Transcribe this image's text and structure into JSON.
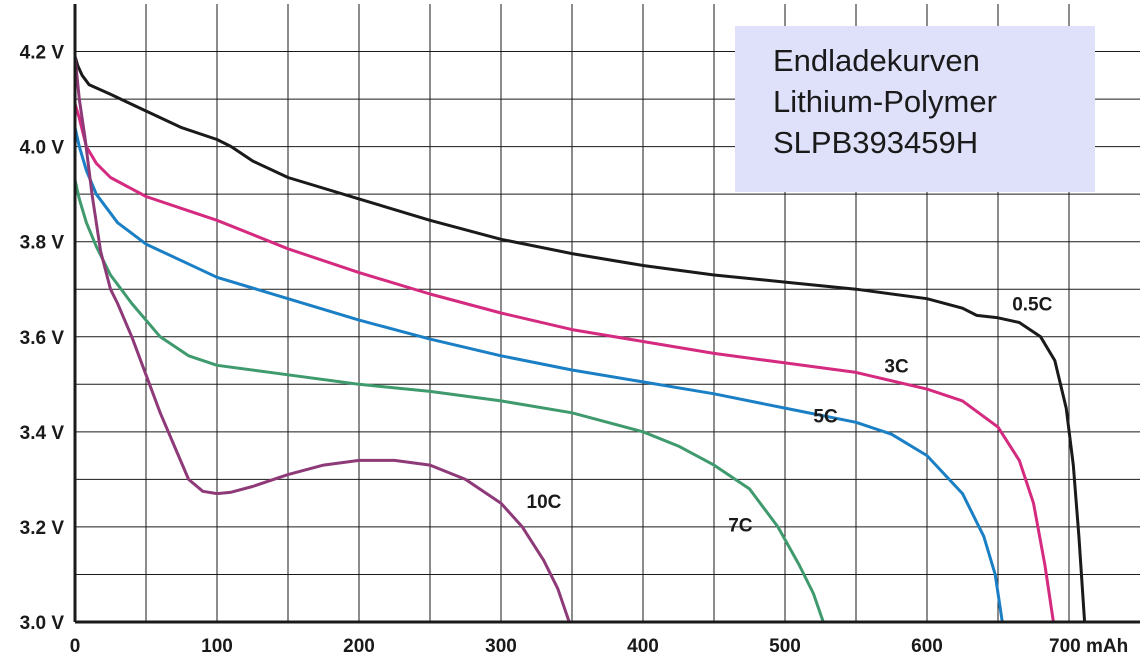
{
  "chart_data": {
    "type": "line",
    "title": [
      "Endladekurven",
      "Lithium-Polymer",
      "SLPB393459H"
    ],
    "xlabel": "",
    "ylabel": "",
    "x_unit_label": "700 mAh",
    "xlim": [
      0,
      750
    ],
    "ylim": [
      3.0,
      4.3
    ],
    "grid": true,
    "x_ticks": [
      0,
      100,
      200,
      300,
      400,
      500,
      600,
      700
    ],
    "x_tick_labels": [
      "0",
      "100",
      "200",
      "300",
      "400",
      "500",
      "600",
      "700 mAh"
    ],
    "y_ticks": [
      3.0,
      3.2,
      3.4,
      3.6,
      3.8,
      4.0,
      4.2
    ],
    "y_tick_labels": [
      "3.0 V",
      "3.2 V",
      "3.4 V",
      "3.6 V",
      "3.8 V",
      "4.0 V",
      "4.2 V"
    ],
    "series": [
      {
        "name": "0.5C",
        "color": "#1a1a1a",
        "label_at": [
          660,
          3.655
        ],
        "points": [
          [
            0,
            4.19
          ],
          [
            2,
            4.17
          ],
          [
            5,
            4.15
          ],
          [
            10,
            4.13
          ],
          [
            25,
            4.11
          ],
          [
            50,
            4.075
          ],
          [
            75,
            4.04
          ],
          [
            100,
            4.015
          ],
          [
            110,
            4.0
          ],
          [
            125,
            3.97
          ],
          [
            150,
            3.935
          ],
          [
            200,
            3.89
          ],
          [
            250,
            3.845
          ],
          [
            300,
            3.805
          ],
          [
            350,
            3.775
          ],
          [
            400,
            3.75
          ],
          [
            450,
            3.73
          ],
          [
            500,
            3.715
          ],
          [
            550,
            3.7
          ],
          [
            600,
            3.68
          ],
          [
            625,
            3.66
          ],
          [
            635,
            3.645
          ],
          [
            650,
            3.64
          ],
          [
            665,
            3.63
          ],
          [
            680,
            3.6
          ],
          [
            690,
            3.55
          ],
          [
            698,
            3.45
          ],
          [
            703,
            3.33
          ],
          [
            707,
            3.18
          ],
          [
            711,
            3.0
          ]
        ]
      },
      {
        "name": "3C",
        "color": "#d42a7f",
        "label_at": [
          570,
          3.525
        ],
        "points": [
          [
            0,
            4.09
          ],
          [
            3,
            4.06
          ],
          [
            8,
            4.0
          ],
          [
            15,
            3.965
          ],
          [
            25,
            3.935
          ],
          [
            50,
            3.895
          ],
          [
            75,
            3.87
          ],
          [
            100,
            3.845
          ],
          [
            150,
            3.785
          ],
          [
            200,
            3.735
          ],
          [
            250,
            3.69
          ],
          [
            300,
            3.65
          ],
          [
            350,
            3.615
          ],
          [
            400,
            3.59
          ],
          [
            450,
            3.565
          ],
          [
            500,
            3.545
          ],
          [
            550,
            3.525
          ],
          [
            600,
            3.49
          ],
          [
            625,
            3.465
          ],
          [
            650,
            3.41
          ],
          [
            665,
            3.34
          ],
          [
            675,
            3.25
          ],
          [
            683,
            3.12
          ],
          [
            689,
            3.0
          ]
        ]
      },
      {
        "name": "5C",
        "color": "#1a7fc4",
        "label_at": [
          520,
          3.42
        ],
        "points": [
          [
            0,
            4.04
          ],
          [
            3,
            4.0
          ],
          [
            8,
            3.95
          ],
          [
            15,
            3.9
          ],
          [
            30,
            3.84
          ],
          [
            50,
            3.795
          ],
          [
            75,
            3.76
          ],
          [
            100,
            3.725
          ],
          [
            150,
            3.68
          ],
          [
            200,
            3.635
          ],
          [
            250,
            3.595
          ],
          [
            300,
            3.56
          ],
          [
            350,
            3.53
          ],
          [
            400,
            3.505
          ],
          [
            450,
            3.48
          ],
          [
            500,
            3.45
          ],
          [
            550,
            3.42
          ],
          [
            575,
            3.395
          ],
          [
            600,
            3.35
          ],
          [
            625,
            3.27
          ],
          [
            640,
            3.18
          ],
          [
            648,
            3.1
          ],
          [
            653,
            3.0
          ]
        ]
      },
      {
        "name": "7C",
        "color": "#3f9a6e",
        "label_at": [
          460,
          3.19
        ],
        "points": [
          [
            0,
            3.93
          ],
          [
            3,
            3.89
          ],
          [
            8,
            3.84
          ],
          [
            15,
            3.79
          ],
          [
            25,
            3.73
          ],
          [
            40,
            3.67
          ],
          [
            60,
            3.6
          ],
          [
            80,
            3.56
          ],
          [
            100,
            3.54
          ],
          [
            150,
            3.52
          ],
          [
            200,
            3.5
          ],
          [
            250,
            3.485
          ],
          [
            300,
            3.465
          ],
          [
            350,
            3.44
          ],
          [
            400,
            3.4
          ],
          [
            425,
            3.37
          ],
          [
            450,
            3.33
          ],
          [
            475,
            3.28
          ],
          [
            495,
            3.2
          ],
          [
            510,
            3.12
          ],
          [
            520,
            3.06
          ],
          [
            527,
            3.0
          ]
        ]
      },
      {
        "name": "10C",
        "color": "#8e3a78",
        "label_at": [
          318,
          3.24
        ],
        "points": [
          [
            0,
            4.19
          ],
          [
            3,
            4.1
          ],
          [
            7,
            4.02
          ],
          [
            12,
            3.9
          ],
          [
            18,
            3.78
          ],
          [
            25,
            3.7
          ],
          [
            30,
            3.67
          ],
          [
            40,
            3.6
          ],
          [
            50,
            3.52
          ],
          [
            60,
            3.44
          ],
          [
            70,
            3.37
          ],
          [
            80,
            3.3
          ],
          [
            90,
            3.275
          ],
          [
            100,
            3.27
          ],
          [
            110,
            3.273
          ],
          [
            125,
            3.285
          ],
          [
            150,
            3.31
          ],
          [
            175,
            3.33
          ],
          [
            200,
            3.34
          ],
          [
            225,
            3.34
          ],
          [
            250,
            3.33
          ],
          [
            275,
            3.3
          ],
          [
            300,
            3.25
          ],
          [
            315,
            3.2
          ],
          [
            330,
            3.13
          ],
          [
            340,
            3.07
          ],
          [
            348,
            3.0
          ]
        ]
      }
    ]
  }
}
